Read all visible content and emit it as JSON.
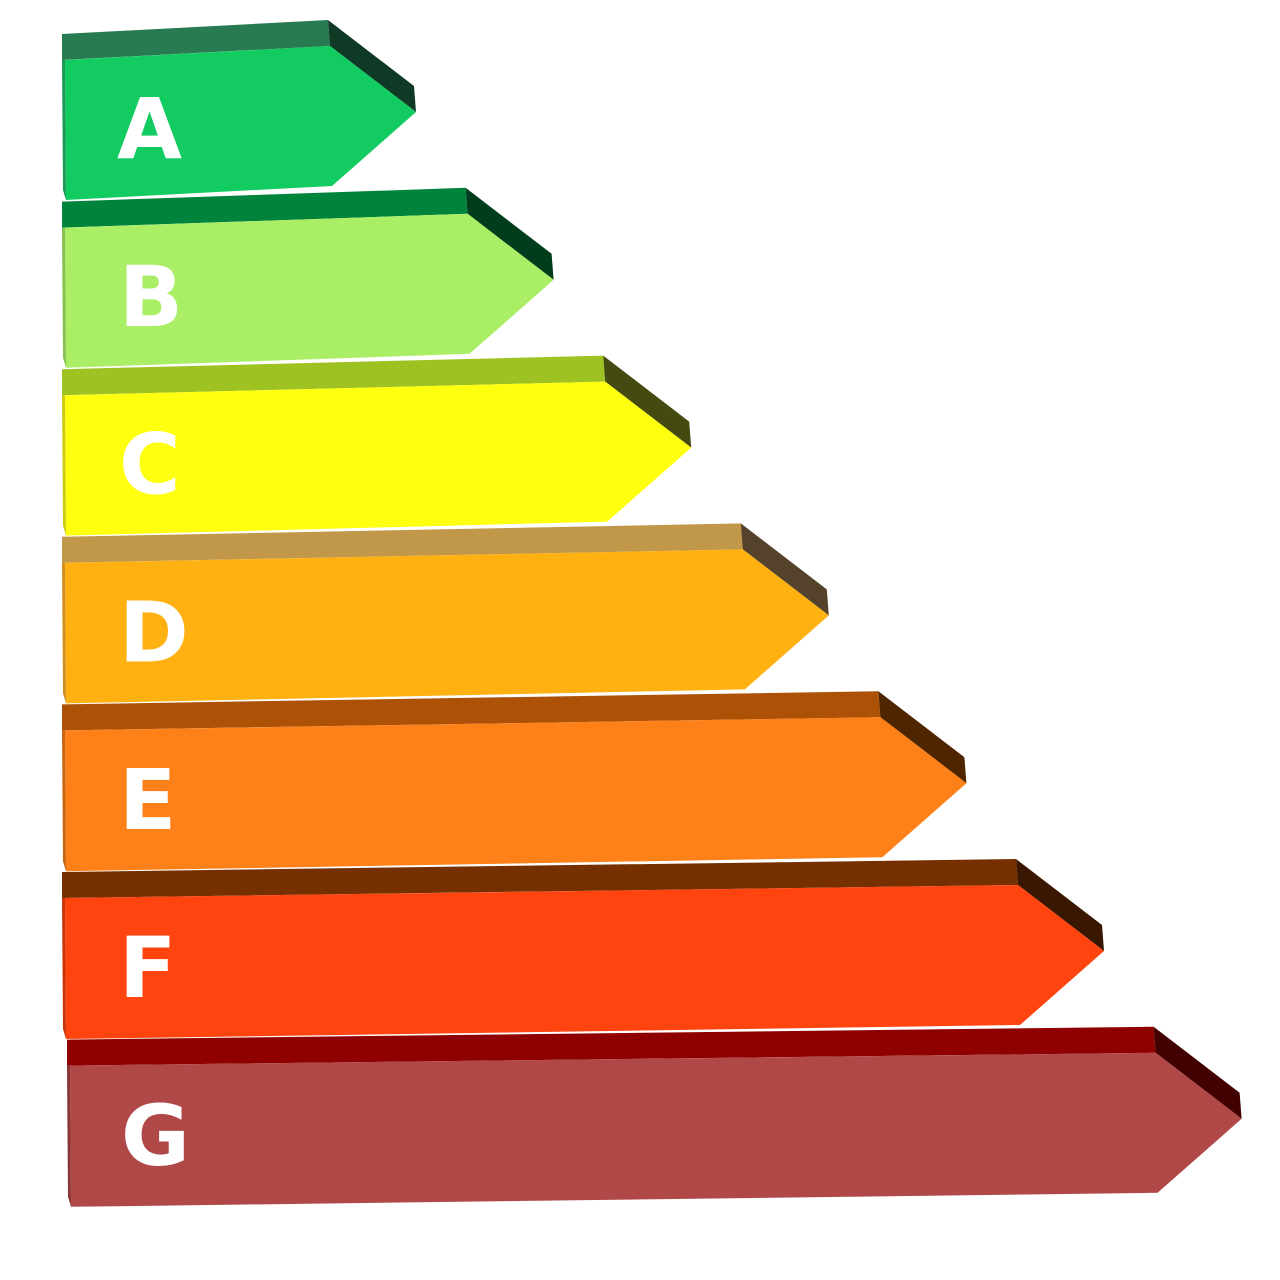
{
  "bars": [
    {
      "letter": "A",
      "front": "#12cc62",
      "top": "#287a50",
      "bevel": "#0f3a25",
      "side": "#1a9a55"
    },
    {
      "letter": "B",
      "front": "#aaee66",
      "top": "#00843c",
      "bevel": "#003d1c",
      "side": "#86c050"
    },
    {
      "letter": "C",
      "front": "#ffff10",
      "top": "#9dc222",
      "bevel": "#444a10",
      "side": "#cccc10"
    },
    {
      "letter": "D",
      "front": "#ffb112",
      "top": "#c1984a",
      "bevel": "#54432a",
      "side": "#d09020"
    },
    {
      "letter": "E",
      "front": "#fd8118",
      "top": "#ad5106",
      "bevel": "#4f2500",
      "side": "#c86510"
    },
    {
      "letter": "F",
      "front": "#ff4410",
      "top": "#763000",
      "bevel": "#3a1700",
      "side": "#c83508"
    },
    {
      "letter": "G",
      "front": "#b04848",
      "top": "#8f0000",
      "bevel": "#420000",
      "side": "#8a3535"
    }
  ]
}
